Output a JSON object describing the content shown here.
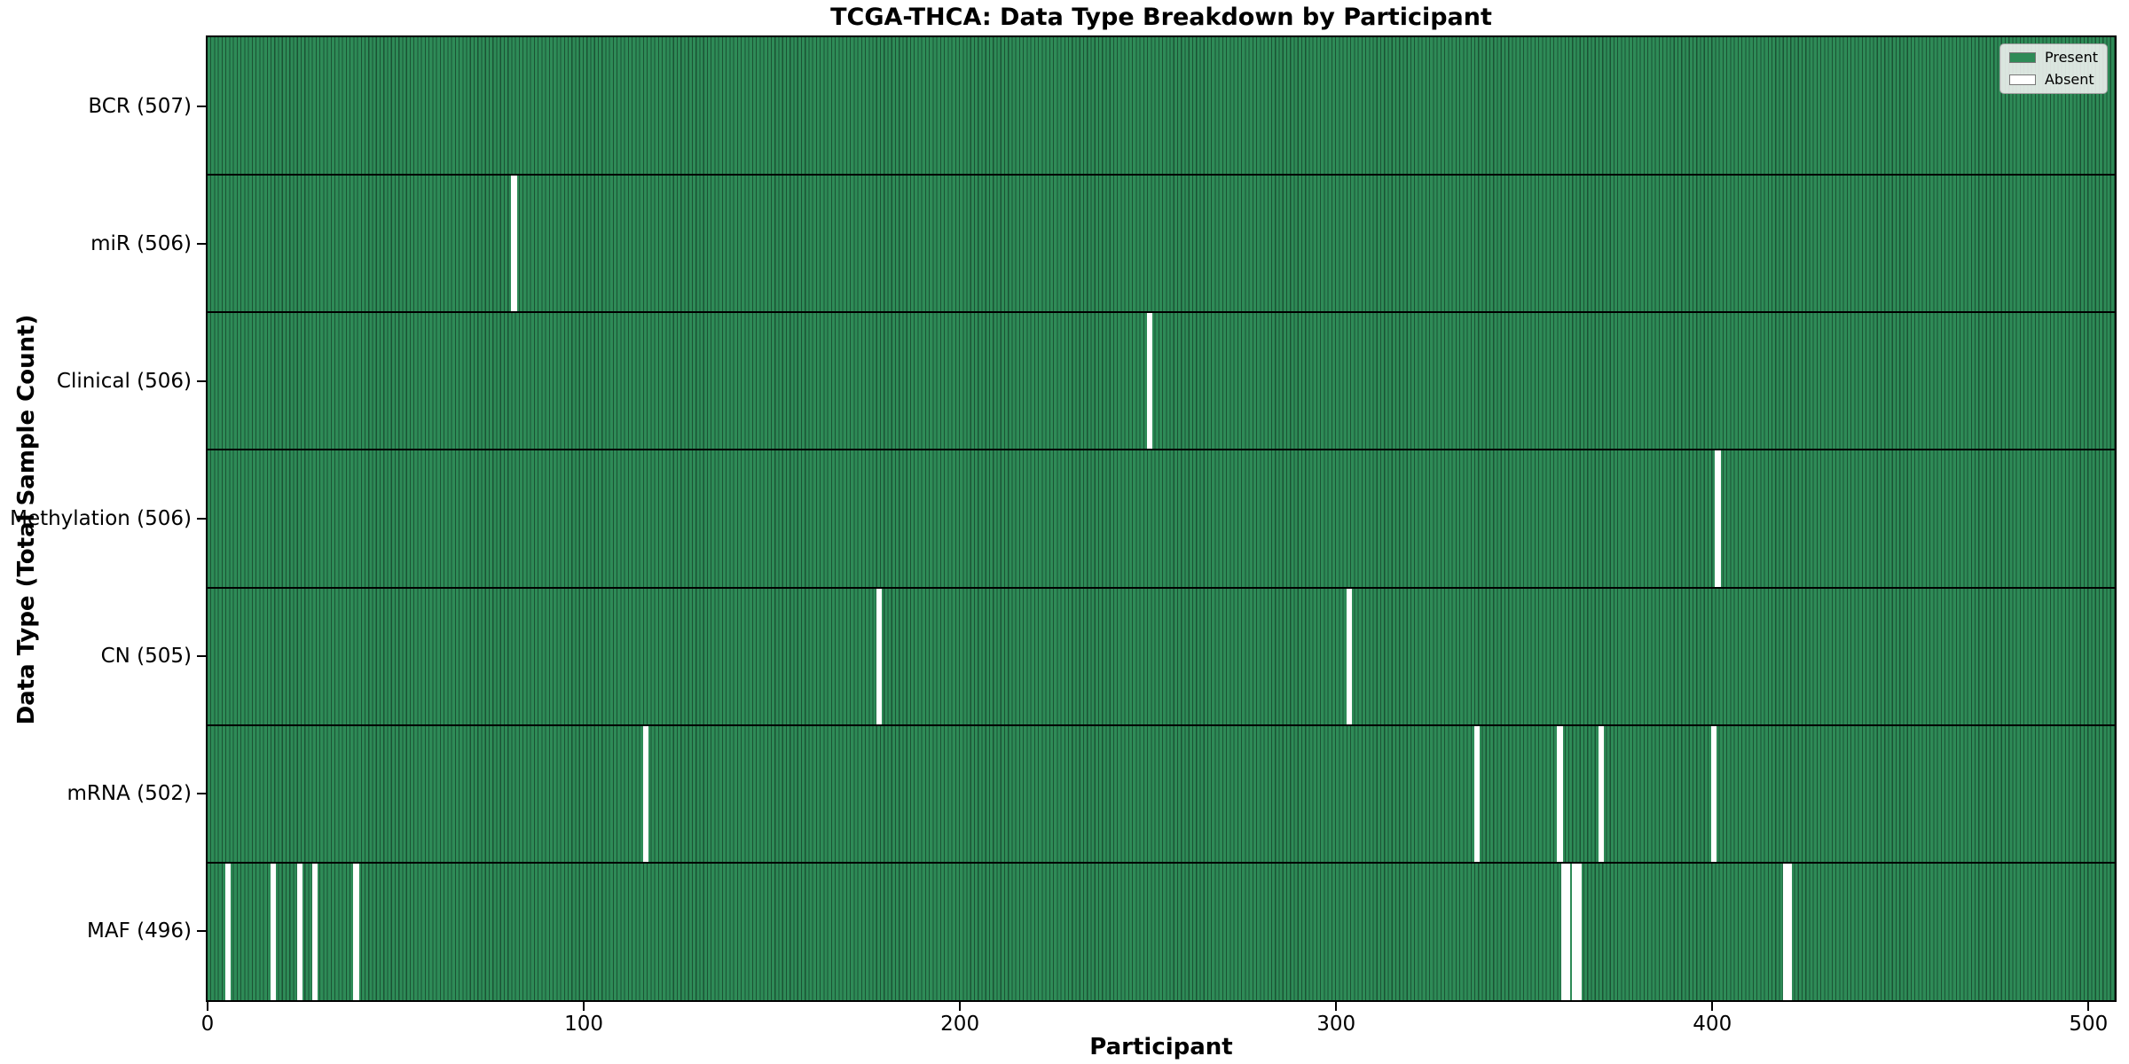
{
  "chart_data": {
    "type": "heatmap",
    "title": "TCGA-THCA: Data Type Breakdown by Participant",
    "xlabel": "Participant",
    "ylabel": "Data Type (Total Sample Count)",
    "x_ticks": [
      0,
      100,
      200,
      300,
      400,
      500
    ],
    "x_range": [
      0,
      507
    ],
    "n_participants": 507,
    "grid": false,
    "legend": {
      "position": "upper right",
      "entries": [
        {
          "label": "Present",
          "color": "#2e8b57"
        },
        {
          "label": "Absent",
          "color": "#ffffff"
        }
      ]
    },
    "rows": [
      {
        "label": "BCR (507)",
        "data_type": "BCR",
        "total_samples": 507,
        "absent_participants": []
      },
      {
        "label": "miR (506)",
        "data_type": "miR",
        "total_samples": 506,
        "absent_participants": [
          81
        ]
      },
      {
        "label": "Clinical (506)",
        "data_type": "Clinical",
        "total_samples": 506,
        "absent_participants": [
          250
        ]
      },
      {
        "label": "Methylation (506)",
        "data_type": "Methylation",
        "total_samples": 506,
        "absent_participants": [
          401
        ]
      },
      {
        "label": "CN (505)",
        "data_type": "CN",
        "total_samples": 505,
        "absent_participants": [
          178,
          303
        ]
      },
      {
        "label": "mRNA (502)",
        "data_type": "mRNA",
        "total_samples": 502,
        "absent_participants": [
          116,
          337,
          359,
          370,
          400
        ]
      },
      {
        "label": "MAF (496)",
        "data_type": "MAF",
        "total_samples": 496,
        "absent_participants": [
          5,
          17,
          24,
          28,
          39,
          360,
          361,
          363,
          364,
          419,
          420
        ]
      }
    ],
    "colors": {
      "present": "#2e8b57",
      "absent": "#ffffff",
      "cell_edge": "#1b5334",
      "row_separator": "#000000"
    }
  }
}
